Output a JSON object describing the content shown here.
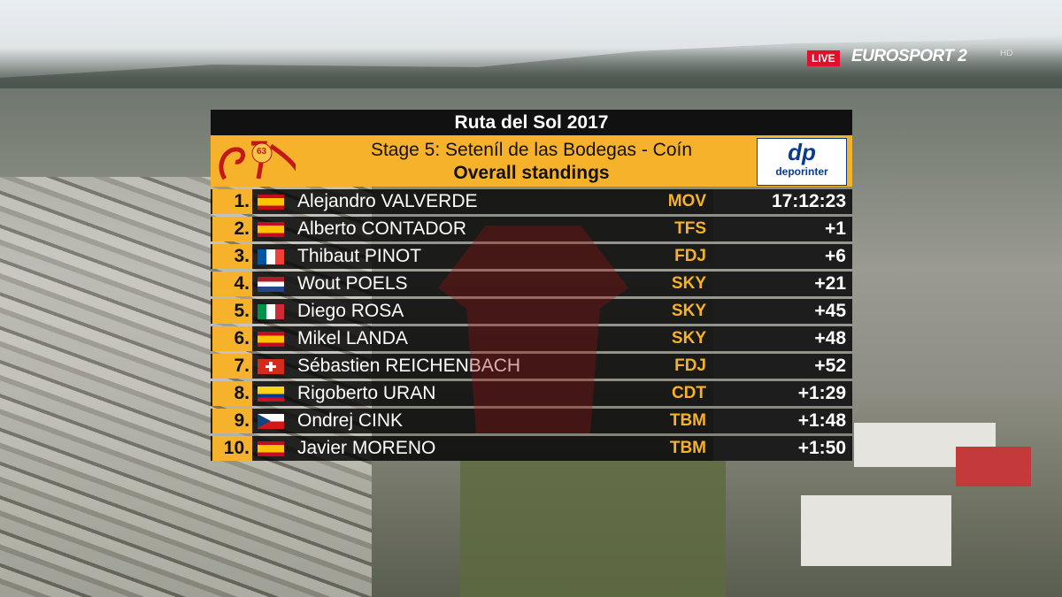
{
  "broadcast": {
    "live": "LIVE",
    "channel": "EUROSPORT 2",
    "hd": "HD"
  },
  "board": {
    "title": "Ruta del Sol 2017",
    "logo_number": "63",
    "stage": "Stage 5: Seteníl de las Bodegas - Coín",
    "subtitle": "Overall standings",
    "sponsor_mark": "dp",
    "sponsor": "deporinter"
  },
  "table": {
    "rows": [
      [
        "1.",
        "Alejandro VALVERDE",
        "MOV",
        "17:12:23"
      ],
      [
        "2.",
        "Alberto CONTADOR",
        "TFS",
        "+1"
      ],
      [
        "3.",
        "Thibaut PINOT",
        "FDJ",
        "+6"
      ],
      [
        "4.",
        "Wout POELS",
        "SKY",
        "+21"
      ],
      [
        "5.",
        "Diego ROSA",
        "SKY",
        "+45"
      ],
      [
        "6.",
        "Mikel LANDA",
        "SKY",
        "+48"
      ],
      [
        "7.",
        "Sébastien REICHENBACH",
        "FDJ",
        "+52"
      ],
      [
        "8.",
        "Rigoberto URAN",
        "CDT",
        "+1:29"
      ],
      [
        "9.",
        "Ondrej CINK",
        "TBM",
        "+1:48"
      ],
      [
        "10.",
        "Javier MORENO",
        "TBM",
        "+1:50"
      ]
    ]
  }
}
